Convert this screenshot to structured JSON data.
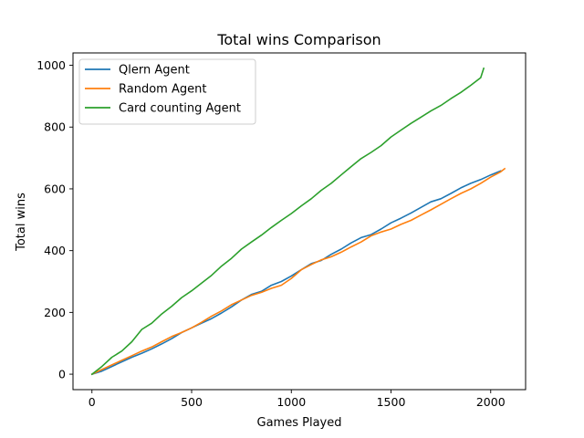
{
  "chart_data": {
    "type": "line",
    "title": "Total wins Comparison",
    "xlabel": "Games Played",
    "ylabel": "Total wins",
    "xlim": [
      -95,
      2175
    ],
    "ylim": [
      -50,
      1040
    ],
    "xticks": [
      0,
      500,
      1000,
      1500,
      2000
    ],
    "yticks": [
      0,
      200,
      400,
      600,
      800,
      1000
    ],
    "xtick_labels": [
      "0",
      "500",
      "1000",
      "1500",
      "2000"
    ],
    "ytick_labels": [
      "0",
      "200",
      "400",
      "600",
      "800",
      "1000"
    ],
    "grid": false,
    "legend_position": "upper left",
    "series": [
      {
        "name": "Qlern Agent",
        "color": "#1f77b4",
        "x": [
          0,
          50,
          100,
          150,
          200,
          250,
          300,
          350,
          400,
          450,
          500,
          550,
          600,
          650,
          700,
          750,
          800,
          850,
          900,
          950,
          1000,
          1050,
          1100,
          1150,
          1200,
          1250,
          1300,
          1350,
          1400,
          1450,
          1500,
          1550,
          1600,
          1650,
          1700,
          1750,
          1800,
          1850,
          1900,
          1950,
          2000,
          2050
        ],
        "y": [
          0,
          10,
          25,
          40,
          55,
          68,
          82,
          98,
          115,
          135,
          150,
          165,
          180,
          198,
          218,
          240,
          258,
          268,
          288,
          300,
          318,
          338,
          358,
          368,
          388,
          405,
          425,
          442,
          452,
          470,
          490,
          505,
          522,
          540,
          558,
          568,
          585,
          603,
          618,
          630,
          645,
          658
        ]
      },
      {
        "name": "Random Agent",
        "color": "#ff7f0e",
        "x": [
          0,
          50,
          100,
          150,
          200,
          250,
          300,
          350,
          400,
          450,
          500,
          550,
          600,
          650,
          700,
          750,
          800,
          850,
          900,
          950,
          1000,
          1050,
          1100,
          1150,
          1200,
          1250,
          1300,
          1350,
          1400,
          1450,
          1500,
          1550,
          1600,
          1650,
          1700,
          1750,
          1800,
          1850,
          1900,
          1950,
          2000,
          2050,
          2070
        ],
        "y": [
          0,
          15,
          30,
          45,
          60,
          75,
          88,
          105,
          122,
          135,
          150,
          168,
          188,
          205,
          225,
          240,
          255,
          265,
          278,
          288,
          310,
          338,
          355,
          370,
          380,
          395,
          412,
          428,
          448,
          460,
          470,
          485,
          498,
          515,
          532,
          550,
          568,
          585,
          600,
          618,
          638,
          655,
          665
        ]
      },
      {
        "name": "Card counting Agent",
        "color": "#2ca02c",
        "x": [
          0,
          50,
          100,
          150,
          200,
          250,
          300,
          350,
          400,
          450,
          500,
          550,
          600,
          650,
          700,
          750,
          800,
          850,
          900,
          950,
          1000,
          1050,
          1100,
          1150,
          1200,
          1250,
          1300,
          1350,
          1400,
          1450,
          1500,
          1550,
          1600,
          1650,
          1700,
          1750,
          1800,
          1850,
          1900,
          1950,
          1965
        ],
        "y": [
          0,
          25,
          55,
          75,
          105,
          145,
          165,
          195,
          220,
          248,
          270,
          295,
          320,
          350,
          375,
          405,
          428,
          450,
          475,
          498,
          520,
          545,
          568,
          595,
          618,
          645,
          672,
          698,
          718,
          740,
          768,
          790,
          812,
          832,
          852,
          870,
          892,
          912,
          935,
          960,
          990
        ]
      }
    ]
  }
}
